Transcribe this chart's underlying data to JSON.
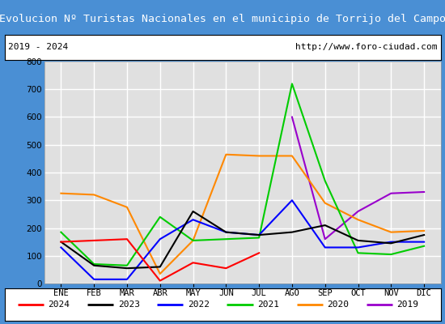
{
  "title": "Evolucion Nº Turistas Nacionales en el municipio de Torrijo del Campo",
  "subtitle_left": "2019 - 2024",
  "subtitle_right": "http://www.foro-ciudad.com",
  "title_bg_color": "#4a8fd4",
  "title_text_color": "#ffffff",
  "subtitle_bg_color": "#ffffff",
  "subtitle_text_color": "#000000",
  "plot_bg_color": "#e0e0e0",
  "grid_color": "#ffffff",
  "months": [
    "ENE",
    "FEB",
    "MAR",
    "ABR",
    "MAY",
    "JUN",
    "JUL",
    "AGO",
    "SEP",
    "OCT",
    "NOV",
    "DIC"
  ],
  "series": {
    "2024": {
      "color": "#ff0000",
      "values": [
        150,
        155,
        160,
        10,
        75,
        55,
        110,
        null,
        null,
        null,
        null,
        null
      ]
    },
    "2023": {
      "color": "#000000",
      "values": [
        150,
        65,
        55,
        60,
        260,
        185,
        175,
        185,
        210,
        155,
        145,
        175
      ]
    },
    "2022": {
      "color": "#0000ff",
      "values": [
        130,
        15,
        15,
        160,
        230,
        185,
        175,
        300,
        130,
        130,
        150,
        150
      ]
    },
    "2021": {
      "color": "#00cc00",
      "values": [
        185,
        70,
        65,
        240,
        155,
        160,
        165,
        720,
        370,
        110,
        105,
        135
      ]
    },
    "2020": {
      "color": "#ff8800",
      "values": [
        325,
        320,
        275,
        35,
        155,
        465,
        460,
        460,
        290,
        230,
        185,
        190
      ]
    },
    "2019": {
      "color": "#9900cc",
      "values": [
        null,
        null,
        null,
        null,
        null,
        null,
        null,
        600,
        160,
        260,
        325,
        330
      ]
    }
  },
  "ylim": [
    0,
    800
  ],
  "yticks": [
    0,
    100,
    200,
    300,
    400,
    500,
    600,
    700,
    800
  ],
  "legend_order": [
    "2024",
    "2023",
    "2022",
    "2021",
    "2020",
    "2019"
  ],
  "outer_bg_color": "#4a8fd4",
  "fig_bg_color": "#4a8fd4"
}
